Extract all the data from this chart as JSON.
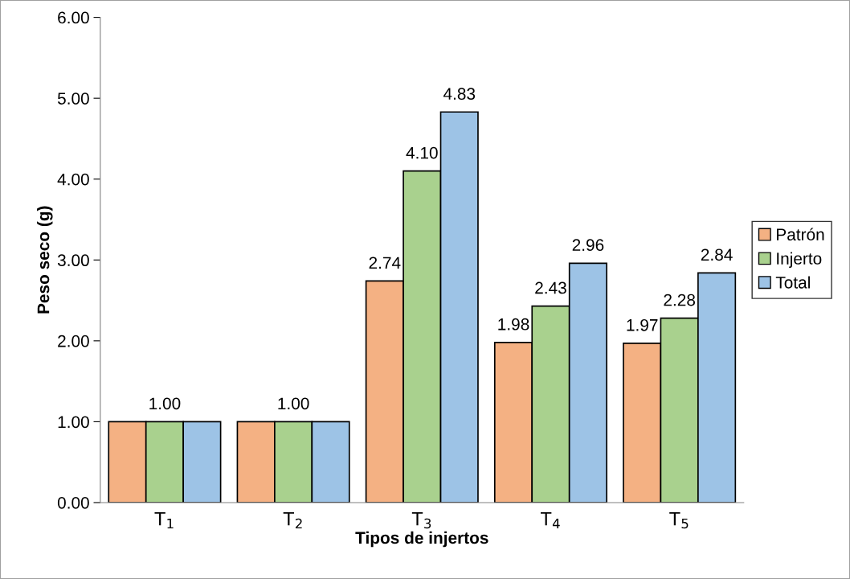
{
  "chart_data": {
    "type": "bar",
    "xlabel": "Tipos de injertos",
    "ylabel": "Peso seco (g)",
    "categories": [
      "T$_{1}$",
      "T$_{2}$",
      "T$_{3}$",
      "T$_{4}$",
      "T$_{5}$"
    ],
    "series": [
      {
        "name": "Patrón",
        "color": "#f4b183",
        "values": [
          1.0,
          1.0,
          2.74,
          1.98,
          1.97
        ],
        "value_labels": [
          null,
          null,
          "2.74",
          "1.98",
          "1.97"
        ]
      },
      {
        "name": "Injerto",
        "color": "#a9d18e",
        "values": [
          1.0,
          1.0,
          4.1,
          2.43,
          2.28
        ],
        "value_labels": [
          "1.00",
          "1.00",
          "4.10",
          "2.43",
          "2.28"
        ]
      },
      {
        "name": "Total",
        "color": "#9dc3e6",
        "values": [
          1.0,
          1.0,
          4.83,
          2.96,
          2.84
        ],
        "value_labels": [
          null,
          null,
          "4.83",
          "2.96",
          "2.84"
        ]
      }
    ],
    "ylim": [
      0,
      6
    ],
    "yticks": [
      {
        "value": 0,
        "label": "0.00"
      },
      {
        "value": 1,
        "label": "1.00"
      },
      {
        "value": 2,
        "label": "2.00"
      },
      {
        "value": 3,
        "label": "3.00"
      },
      {
        "value": 4,
        "label": "4.00"
      },
      {
        "value": 5,
        "label": "5.00"
      },
      {
        "value": 6,
        "label": "6.00"
      }
    ],
    "grid": false,
    "legend": "right"
  }
}
